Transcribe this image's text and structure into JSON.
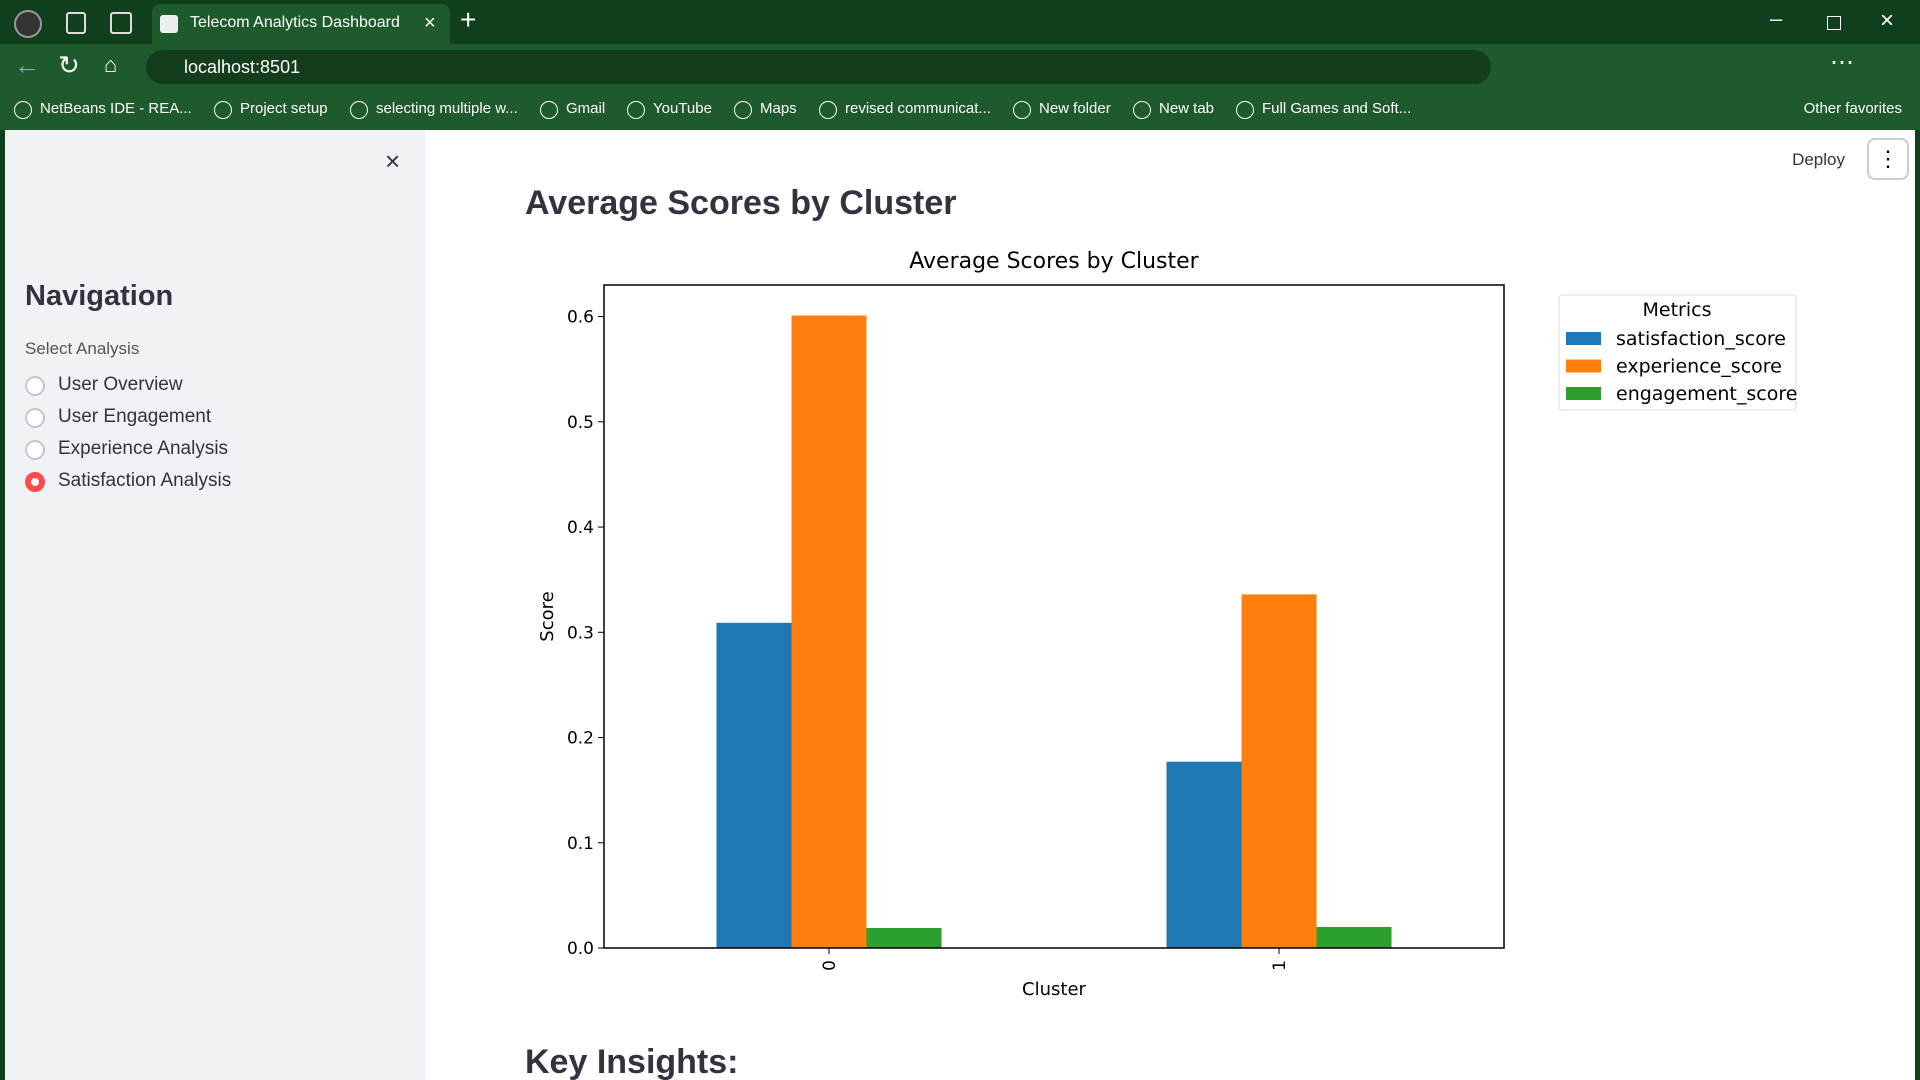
{
  "browser": {
    "tab_title": "Telecom Analytics Dashboard",
    "url": "localhost:8501",
    "bookmarks": [
      "NetBeans IDE - REA...",
      "Project setup",
      "selecting multiple w...",
      "Gmail",
      "YouTube",
      "Maps",
      "revised communicat...",
      "New folder",
      "New tab",
      "Full Games and Soft..."
    ],
    "other_favorites": "Other favorites"
  },
  "app": {
    "deploy": "Deploy",
    "sidebar": {
      "title": "Navigation",
      "label": "Select Analysis",
      "options": [
        "User Overview",
        "User Engagement",
        "Experience Analysis",
        "Satisfaction Analysis"
      ],
      "selected": 3
    },
    "heading": "Average Scores by Cluster",
    "next_heading": "Key Insights:"
  },
  "chart_data": {
    "type": "bar",
    "title": "Average Scores by Cluster",
    "xlabel": "Cluster",
    "ylabel": "Score",
    "categories": [
      "0",
      "1"
    ],
    "series": [
      {
        "name": "satisfaction_score",
        "color": "#1f77b4",
        "values": [
          0.309,
          0.177
        ]
      },
      {
        "name": "experience_score",
        "color": "#ff7f0e",
        "values": [
          0.601,
          0.336
        ]
      },
      {
        "name": "engagement_score",
        "color": "#2ca02c",
        "values": [
          0.019,
          0.02
        ]
      }
    ],
    "ylim": [
      0,
      0.63
    ],
    "yticks": [
      {
        "value": 0,
        "label": "0.0"
      },
      0.1,
      0.2,
      0.3,
      0.4,
      0.5,
      0.6
    ],
    "legend_title": "Metrics",
    "legend": "outside-right",
    "grid": false
  }
}
